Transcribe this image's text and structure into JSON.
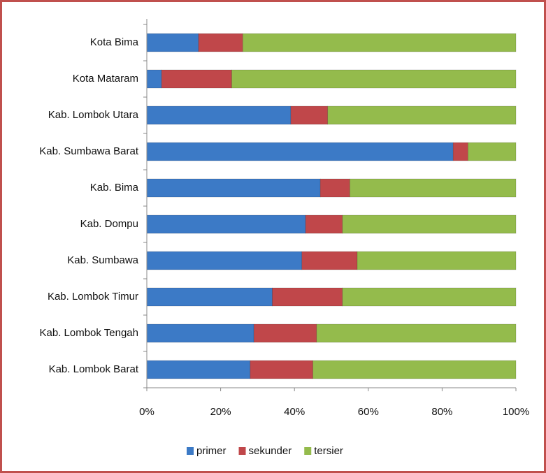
{
  "chart_data": {
    "type": "stacked_bar_horizontal",
    "categories": [
      "Kota Bima",
      "Kota Mataram",
      "Kab. Lombok Utara",
      "Kab. Sumbawa Barat",
      "Kab. Bima",
      "Kab. Dompu",
      "Kab. Sumbawa",
      "Kab. Lombok Timur",
      "Kab. Lombok Tengah",
      "Kab. Lombok Barat"
    ],
    "series": [
      {
        "name": "primer",
        "color": "#3c7ac6",
        "values": [
          14,
          4,
          39,
          83,
          47,
          43,
          42,
          34,
          29,
          28
        ]
      },
      {
        "name": "sekunder",
        "color": "#c0474a",
        "values": [
          12,
          19,
          10,
          4,
          8,
          10,
          15,
          19,
          17,
          17
        ]
      },
      {
        "name": "tersier",
        "color": "#94bb4c",
        "values": [
          74,
          77,
          51,
          13,
          45,
          47,
          43,
          47,
          54,
          55
        ]
      }
    ],
    "xlim": [
      0,
      100
    ],
    "xticks": [
      {
        "value": 0,
        "label": "0%"
      },
      {
        "value": 20,
        "label": "20%"
      },
      {
        "value": 40,
        "label": "40%"
      },
      {
        "value": 60,
        "label": "60%"
      },
      {
        "value": 80,
        "label": "80%"
      },
      {
        "value": 100,
        "label": "100%"
      }
    ],
    "legend": "bottom"
  }
}
